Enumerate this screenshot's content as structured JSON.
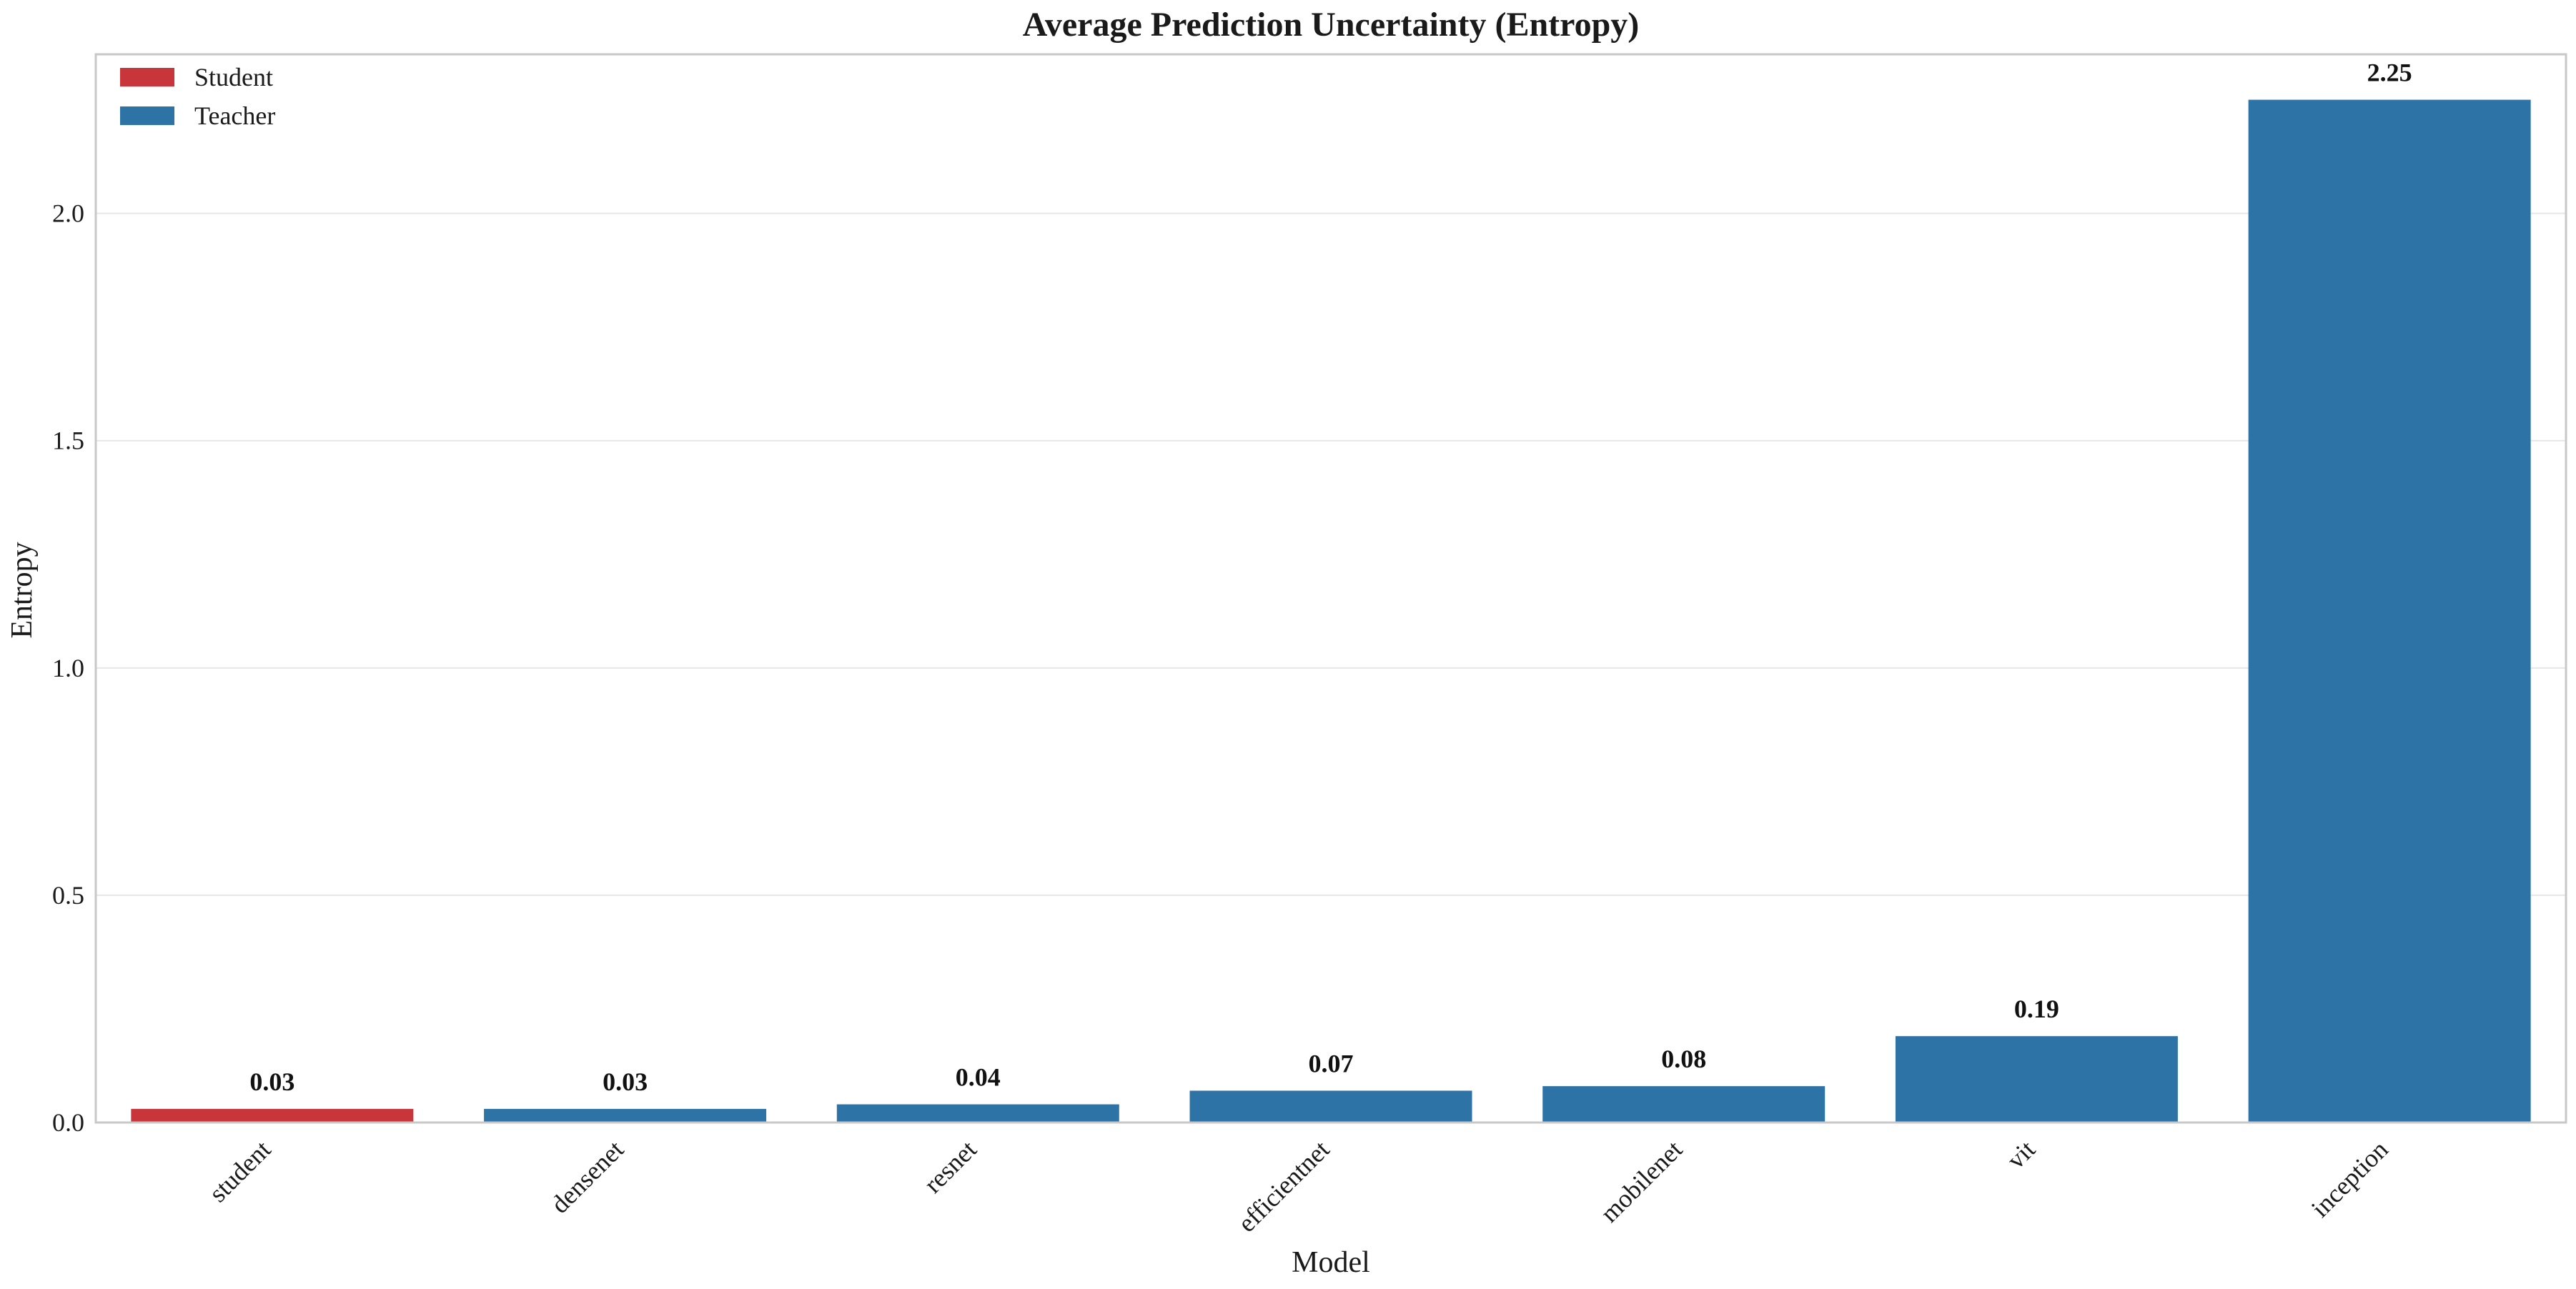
{
  "chart_data": {
    "type": "bar",
    "title": "Average Prediction Uncertainty (Entropy)",
    "xlabel": "Model",
    "ylabel": "Entropy",
    "categories": [
      "student",
      "densenet",
      "resnet",
      "efficientnet",
      "mobilenet",
      "vit",
      "inception"
    ],
    "values": [
      0.03,
      0.03,
      0.04,
      0.07,
      0.08,
      0.19,
      2.25
    ],
    "value_labels": [
      "0.03",
      "0.03",
      "0.04",
      "0.07",
      "0.08",
      "0.19",
      "2.25"
    ],
    "groups": [
      "Student",
      "Teacher",
      "Teacher",
      "Teacher",
      "Teacher",
      "Teacher",
      "Teacher"
    ],
    "ylim": [
      0,
      2.35
    ],
    "yticks": [
      0.0,
      0.5,
      1.0,
      1.5,
      2.0
    ],
    "ytick_labels": [
      "0.0",
      "0.5",
      "1.0",
      "1.5",
      "2.0"
    ],
    "grid": true,
    "legend": {
      "position": "top-left",
      "entries": [
        {
          "label": "Student",
          "color": "#c8353a"
        },
        {
          "label": "Teacher",
          "color": "#2e73a6"
        }
      ]
    },
    "colors": {
      "Student": "#c8353a",
      "Teacher": "#2e73a6"
    }
  }
}
